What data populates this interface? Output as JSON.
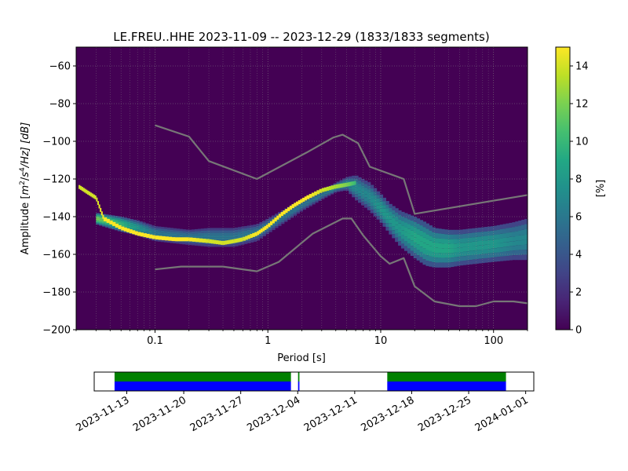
{
  "chart_data": [
    {
      "type": "heatmap",
      "title": "LE.FREU..HHE   2023-11-09 -- 2023-12-29  (1833/1833 segments)",
      "xlabel": "Period [s]",
      "ylabel_parts": {
        "pre": "Amplitude [",
        "m": "m",
        "sup2": "2",
        "slash": "/",
        "s": "s",
        "sup4": "4",
        "hz": "/Hz] [dB]"
      },
      "xscale": "log",
      "xlim": [
        0.02,
        200
      ],
      "ylim": [
        -200,
        -50
      ],
      "xticks": [
        {
          "value": 0.1,
          "label": "0.1"
        },
        {
          "value": 1,
          "label": "1"
        },
        {
          "value": 10,
          "label": "10"
        },
        {
          "value": 100,
          "label": "100"
        }
      ],
      "yticks": [
        {
          "value": -60,
          "label": "−60"
        },
        {
          "value": -80,
          "label": "−80"
        },
        {
          "value": -100,
          "label": "−100"
        },
        {
          "value": -120,
          "label": "−120"
        },
        {
          "value": -140,
          "label": "−140"
        },
        {
          "value": -160,
          "label": "−160"
        },
        {
          "value": -180,
          "label": "−180"
        },
        {
          "value": -200,
          "label": "−200"
        }
      ],
      "grid": true,
      "colormap": "viridis",
      "colorbar": {
        "label": "[%]",
        "range": [
          0,
          15
        ],
        "ticks": [
          {
            "value": 0,
            "label": "0"
          },
          {
            "value": 2,
            "label": "2"
          },
          {
            "value": 4,
            "label": "4"
          },
          {
            "value": 6,
            "label": "6"
          },
          {
            "value": 8,
            "label": "8"
          },
          {
            "value": 10,
            "label": "10"
          },
          {
            "value": 12,
            "label": "12"
          },
          {
            "value": 14,
            "label": "14"
          }
        ]
      },
      "mode_curve": {
        "x": [
          0.021,
          0.025,
          0.03,
          0.035,
          0.05,
          0.07,
          0.1,
          0.15,
          0.2,
          0.3,
          0.4,
          0.5,
          0.6,
          0.8,
          1,
          1.3,
          1.7,
          2.2,
          3,
          4,
          5,
          6
        ],
        "y": [
          -124,
          -127,
          -130,
          -141,
          -146,
          -149,
          -151,
          -152,
          -152,
          -153,
          -154,
          -153,
          -152,
          -149,
          -145,
          -139,
          -134,
          -130,
          -126,
          -124,
          -123,
          -122
        ],
        "percent": [
          14,
          14,
          14,
          15,
          15,
          15,
          15,
          15,
          15,
          14,
          14,
          14,
          14,
          15,
          15,
          15,
          15,
          15,
          14,
          13,
          12,
          10
        ]
      },
      "distribution_band": {
        "x": [
          0.03,
          0.05,
          0.07,
          0.1,
          0.2,
          0.3,
          0.5,
          0.8,
          1,
          1.5,
          2,
          3,
          4,
          5,
          6,
          8,
          10,
          12,
          15,
          20,
          25,
          30,
          40,
          50,
          70,
          100,
          150,
          200
        ],
        "upper": [
          -138,
          -140,
          -142,
          -145,
          -147,
          -146,
          -146,
          -144,
          -141,
          -135,
          -131,
          -126,
          -122,
          -119,
          -118,
          -122,
          -128,
          -133,
          -137,
          -140,
          -143,
          -146,
          -147,
          -147,
          -146,
          -145,
          -143,
          -141
        ],
        "lower": [
          -144,
          -148,
          -150,
          -153,
          -155,
          -156,
          -156,
          -153,
          -149,
          -142,
          -137,
          -131,
          -127,
          -126,
          -131,
          -137,
          -143,
          -149,
          -156,
          -162,
          -166,
          -167,
          -167,
          -166,
          -165,
          -164,
          -163,
          -163
        ],
        "peak_percent": [
          12,
          10,
          8,
          6,
          6,
          6,
          6,
          6,
          6,
          6,
          6,
          6,
          7,
          7,
          7,
          7,
          8,
          8,
          8,
          9,
          9,
          9,
          9,
          8,
          8,
          8,
          7,
          7
        ]
      },
      "reference_curves": [
        {
          "x": [
            0.1,
            0.2,
            0.3,
            0.8,
            2.2,
            3.8,
            4.6,
            6.3,
            8,
            16,
            20,
            200
          ],
          "y": [
            -91.5,
            -97.5,
            -110.5,
            -120,
            -106,
            -98,
            -96.5,
            -101,
            -113.5,
            -120,
            -138.5,
            -128.5
          ]
        },
        {
          "x": [
            0.1,
            0.17,
            0.4,
            0.8,
            1.25,
            2.5,
            4.6,
            5.5,
            7,
            10,
            12,
            16,
            20,
            30,
            50,
            70,
            100,
            150,
            200
          ],
          "y": [
            -168,
            -166.5,
            -166.5,
            -169,
            -164,
            -149,
            -141,
            -141,
            -150,
            -161,
            -165,
            -162,
            -177,
            -185,
            -187.5,
            -187.5,
            -185,
            -185,
            -186
          ]
        }
      ],
      "reference_curve_color": "#777777"
    },
    {
      "type": "timeline",
      "xlim": [
        "2023-11-09",
        "2024-01-02"
      ],
      "xticks": [
        {
          "value": "2023-11-13",
          "label": "2023-11-13"
        },
        {
          "value": "2023-11-20",
          "label": "2023-11-20"
        },
        {
          "value": "2023-11-27",
          "label": "2023-11-27"
        },
        {
          "value": "2023-12-04",
          "label": "2023-12-04"
        },
        {
          "value": "2023-12-11",
          "label": "2023-12-11"
        },
        {
          "value": "2023-12-18",
          "label": "2023-12-18"
        },
        {
          "value": "2023-12-25",
          "label": "2023-12-25"
        },
        {
          "value": "2024-01-01",
          "label": "2024-01-01"
        }
      ],
      "available_data_color": "#008000",
      "used_data_color": "#0000ff",
      "coverage": [
        {
          "start": "2023-11-11 12:00",
          "end": "2023-12-03 04:00"
        },
        {
          "start": "2023-12-04 01:00",
          "end": "2023-12-04 05:00"
        },
        {
          "start": "2023-12-15 00:00",
          "end": "2023-12-29 14:00"
        }
      ]
    }
  ]
}
